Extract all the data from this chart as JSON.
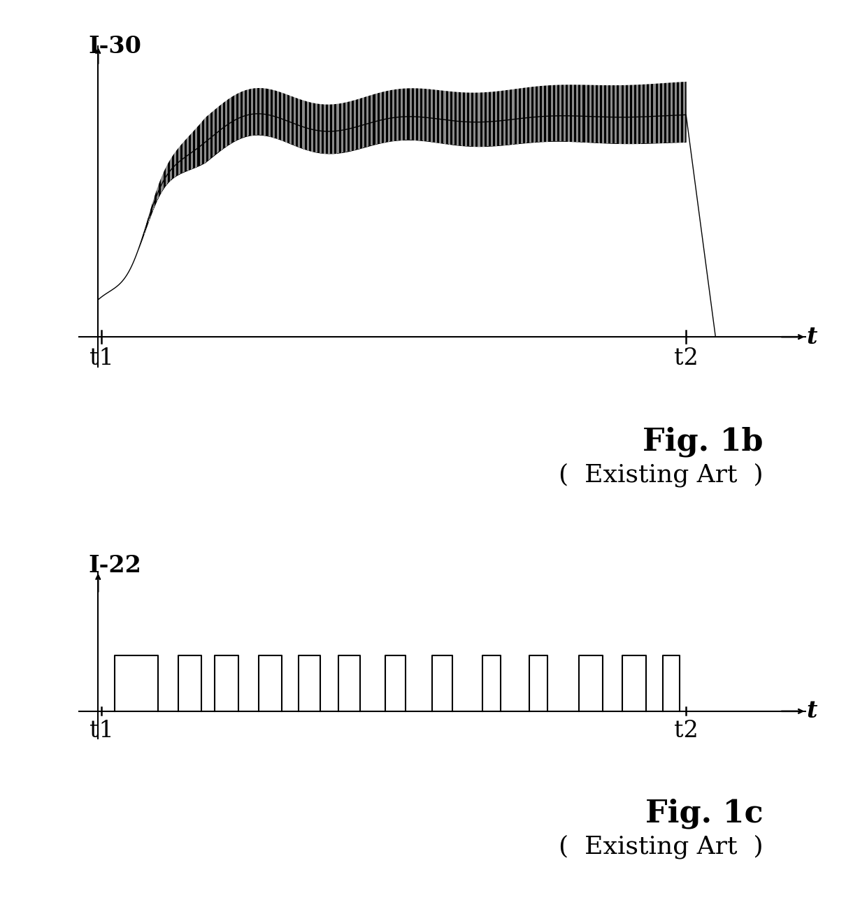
{
  "fig1b_ylabel": "I-30",
  "fig1b_xlabel": "t",
  "fig1b_t1": "t1",
  "fig1b_t2": "t2",
  "fig1c_ylabel": "I-22",
  "fig1c_xlabel": "t",
  "fig1c_t1": "t1",
  "fig1c_t2": "t2",
  "fig1b_caption": "Fig. 1b",
  "fig1b_subcaption": "(  Existing Art  )",
  "fig1c_caption": "Fig. 1c",
  "fig1c_subcaption": "(  Existing Art  )",
  "line_color": "#000000",
  "background_color": "#ffffff",
  "caption_fontsize": 32,
  "subcaption_fontsize": 26,
  "label_fontsize": 24
}
